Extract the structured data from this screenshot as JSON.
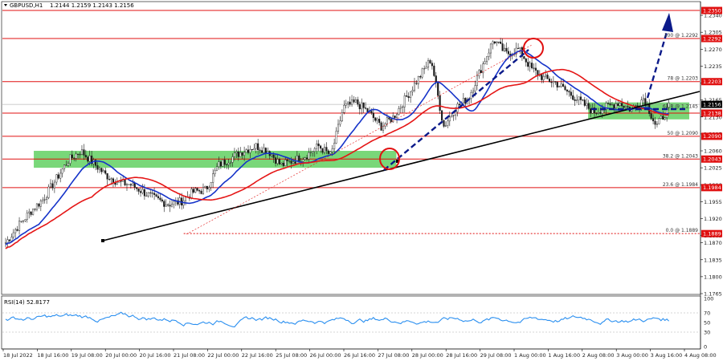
{
  "header": {
    "symbol": "GBPUSD,H1",
    "ohlc": "1.2144 1.2159 1.2143 1.2156"
  },
  "rsi_header": "RSI(14) 52.8177",
  "colors": {
    "candle": "#1a1a1a",
    "ma_fast": "#1533c9",
    "ma_slow": "#e51616",
    "resistance": "#e01010",
    "support_zone": "#62d062",
    "trendline": "#000000",
    "arrow": "#0b1a8a",
    "rsi": "#2a8ff0",
    "highlight": "#e01010"
  },
  "chart_data": {
    "type": "candlestick",
    "title": "GBPUSD,H1",
    "y_ticks": [
      "1.2340",
      "1.2305",
      "1.2270",
      "1.2235",
      "1.2200",
      "1.2165",
      "1.2130",
      "1.2095",
      "1.2060",
      "1.2025",
      "1.1990",
      "1.1955",
      "1.1920",
      "1.1885",
      "1.1870",
      "1.1835",
      "1.1800",
      "1.1765"
    ],
    "x_ticks": [
      "18 Jul 2022",
      "18 Jul 16:00",
      "19 Jul 08:00",
      "20 Jul 00:00",
      "20 Jul 16:00",
      "21 Jul 08:00",
      "22 Jul 00:00",
      "22 Jul 16:00",
      "25 Jul 08:00",
      "26 Jul 00:00",
      "26 Jul 16:00",
      "27 Jul 08:00",
      "28 Jul 00:00",
      "28 Jul 16:00",
      "29 Jul 08:00",
      "1 Aug 00:00",
      "1 Aug 16:00",
      "2 Aug 08:00",
      "3 Aug 00:00",
      "3 Aug 16:00",
      "4 Aug 08:00"
    ],
    "ylim": [
      1.1765,
      1.2365
    ],
    "price_labels": [
      {
        "price": 1.235,
        "label": "1.2350",
        "bg": "#e01010"
      },
      {
        "price": 1.2292,
        "label": "1.2292",
        "bg": "#e01010"
      },
      {
        "price": 1.2203,
        "label": "1.2203",
        "bg": "#e01010"
      },
      {
        "price": 1.2156,
        "label": "1.2156",
        "bg": "#000000"
      },
      {
        "price": 1.2138,
        "label": "1.2138",
        "bg": "#e01010"
      },
      {
        "price": 1.209,
        "label": "1.2090",
        "bg": "#e01010"
      },
      {
        "price": 1.2043,
        "label": "1.2043",
        "bg": "#e01010"
      },
      {
        "price": 1.1984,
        "label": "1.1984",
        "bg": "#e01010"
      },
      {
        "price": 1.1889,
        "label": "1.1889",
        "bg": "#e01010"
      }
    ],
    "resistance_levels": [
      1.235,
      1.2292,
      1.2203,
      1.2138,
      1.209,
      1.2043,
      1.1984
    ],
    "fib_levels": [
      {
        "price": 1.2292,
        "label": "100 @ 1.2292"
      },
      {
        "price": 1.2203,
        "label": "78 @ 1.2203"
      },
      {
        "price": 1.2145,
        "label": "61.8 @ 1.2145"
      },
      {
        "price": 1.209,
        "label": "50 @ 1.2090"
      },
      {
        "price": 1.2043,
        "label": "38.2 @ 1.2043"
      },
      {
        "price": 1.1984,
        "label": "23.6 @ 1.1984"
      },
      {
        "price": 1.1889,
        "label": "0.0 @ 1.1889"
      }
    ],
    "dotted_level": 1.1889,
    "support_zones": [
      {
        "from_pct": 0.045,
        "to_pct": 0.565,
        "low": 1.2025,
        "high": 1.206
      },
      {
        "from_pct": 0.84,
        "to_pct": 0.985,
        "low": 1.2125,
        "high": 1.216
      }
    ],
    "rsi": {
      "label": "RSI(14) 52.8177",
      "ticks": [
        100,
        70,
        50,
        30,
        0
      ],
      "last": 52.8
    },
    "key_prices": [
      1.187,
      1.1905,
      1.1935,
      1.196,
      1.2,
      1.204,
      1.206,
      1.2035,
      1.201,
      1.1995,
      1.199,
      1.1975,
      1.196,
      1.195,
      1.1955,
      1.1975,
      1.198,
      1.203,
      1.2045,
      1.206,
      1.207,
      1.206,
      1.203,
      1.204,
      1.205,
      1.207,
      1.205,
      1.215,
      1.216,
      1.214,
      1.211,
      1.213,
      1.217,
      1.221,
      1.225,
      1.211,
      1.215,
      1.217,
      1.223,
      1.229,
      1.226,
      1.227,
      1.223,
      1.221,
      1.22,
      1.218,
      1.216,
      1.214,
      1.215,
      1.216,
      1.2145,
      1.217,
      1.211,
      1.215
    ]
  }
}
